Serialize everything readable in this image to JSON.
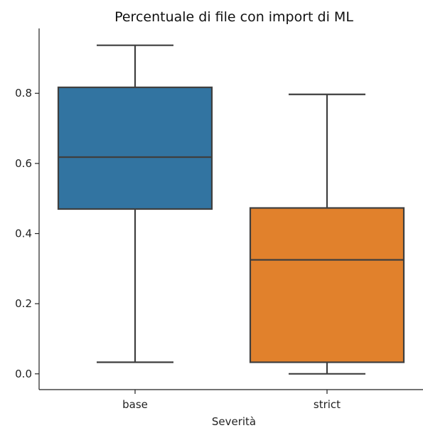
{
  "chart_data": {
    "type": "box",
    "title": "Percentuale di file con import di ML",
    "xlabel": "Severità",
    "ylabel": "",
    "categories": [
      "base",
      "strict"
    ],
    "ylim": [
      -0.045,
      0.985
    ],
    "yticks": [
      0.0,
      0.2,
      0.4,
      0.6,
      0.8
    ],
    "ytick_labels": [
      "0.0",
      "0.2",
      "0.4",
      "0.6",
      "0.8"
    ],
    "grid": false,
    "boxes": [
      {
        "name": "base",
        "color": "#3274a1",
        "whisker_low": 0.033,
        "q1": 0.47,
        "median": 0.618,
        "q3": 0.817,
        "whisker_high": 0.937
      },
      {
        "name": "strict",
        "color": "#e1812c",
        "whisker_low": 0.0,
        "q1": 0.033,
        "median": 0.325,
        "q3": 0.473,
        "whisker_high": 0.797
      }
    ]
  }
}
